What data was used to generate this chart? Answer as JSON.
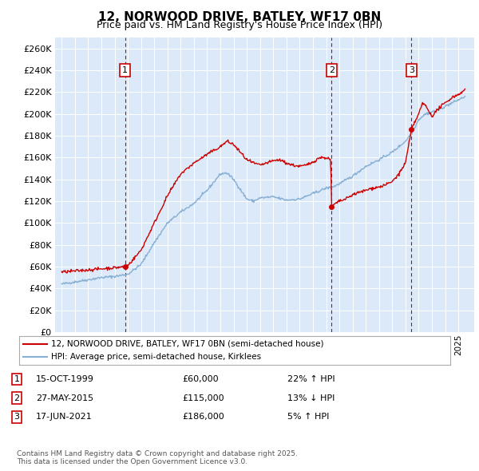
{
  "title": "12, NORWOOD DRIVE, BATLEY, WF17 0BN",
  "subtitle": "Price paid vs. HM Land Registry's House Price Index (HPI)",
  "plot_bg_color": "#dce9f8",
  "ylabel_ticks": [
    "£0",
    "£20K",
    "£40K",
    "£60K",
    "£80K",
    "£100K",
    "£120K",
    "£140K",
    "£160K",
    "£180K",
    "£200K",
    "£220K",
    "£240K",
    "£260K"
  ],
  "ytick_values": [
    0,
    20000,
    40000,
    60000,
    80000,
    100000,
    120000,
    140000,
    160000,
    180000,
    200000,
    220000,
    240000,
    260000
  ],
  "ylim": [
    0,
    270000
  ],
  "sale_color": "#cc0000",
  "hpi_color": "#85afd4",
  "vline_color": "#cc0000",
  "marker_color": "#cc0000",
  "sale_dates": [
    1999.79,
    2015.41,
    2021.46
  ],
  "sale_prices": [
    60000,
    115000,
    186000
  ],
  "sale_labels": [
    "1",
    "2",
    "3"
  ],
  "legend_sale_label": "12, NORWOOD DRIVE, BATLEY, WF17 0BN (semi-detached house)",
  "legend_hpi_label": "HPI: Average price, semi-detached house, Kirklees",
  "table_rows": [
    [
      "1",
      "15-OCT-1999",
      "£60,000",
      "22% ↑ HPI"
    ],
    [
      "2",
      "27-MAY-2015",
      "£115,000",
      "13% ↓ HPI"
    ],
    [
      "3",
      "17-JUN-2021",
      "£186,000",
      "5% ↑ HPI"
    ]
  ],
  "footnote": "Contains HM Land Registry data © Crown copyright and database right 2025.\nThis data is licensed under the Open Government Licence v3.0.",
  "xmin": 1994.5,
  "xmax": 2026.2
}
